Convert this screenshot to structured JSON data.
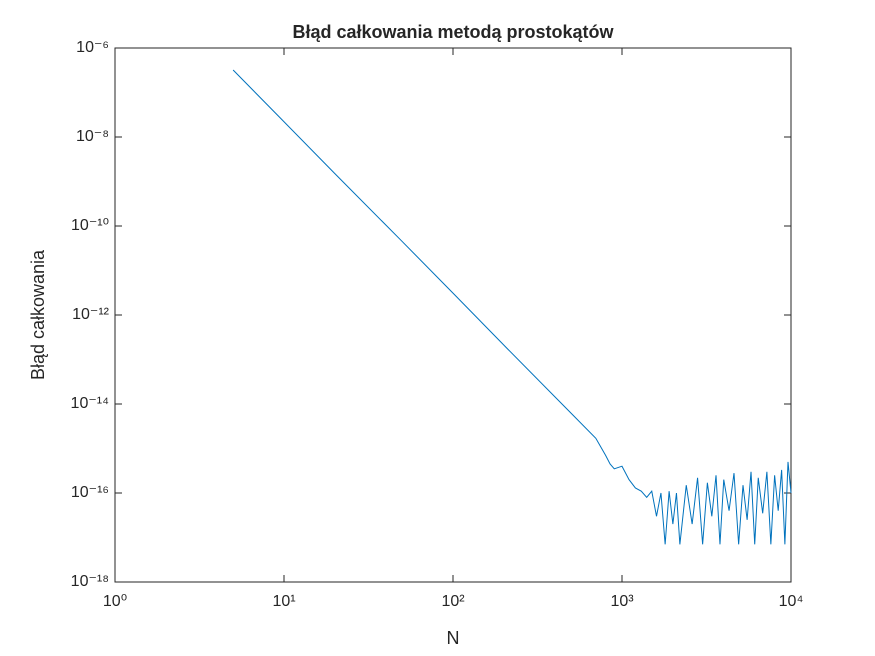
{
  "chart_data": {
    "type": "line",
    "title": "Błąd całkowania metodą prostokątów",
    "xlabel": "N",
    "ylabel": "Błąd całkowania",
    "xscale": "log",
    "yscale": "log",
    "xlim": [
      1,
      10000
    ],
    "ylim": [
      1e-18,
      1e-06
    ],
    "xticks": [
      {
        "value": 1,
        "label": "10⁰"
      },
      {
        "value": 10,
        "label": "10¹"
      },
      {
        "value": 100,
        "label": "10²"
      },
      {
        "value": 1000,
        "label": "10³"
      },
      {
        "value": 10000,
        "label": "10⁴"
      }
    ],
    "yticks": [
      {
        "value": 1e-18,
        "label": "10⁻¹⁸"
      },
      {
        "value": 1e-16,
        "label": "10⁻¹⁶"
      },
      {
        "value": 1e-14,
        "label": "10⁻¹⁴"
      },
      {
        "value": 1e-12,
        "label": "10⁻¹²"
      },
      {
        "value": 1e-10,
        "label": "10⁻¹⁰"
      },
      {
        "value": 1e-08,
        "label": "10⁻⁸"
      },
      {
        "value": 1e-06,
        "label": "10⁻⁶"
      }
    ],
    "color": "#0072bd",
    "x": [
      5,
      10,
      20,
      50,
      100,
      200,
      500,
      700,
      800,
      850,
      900,
      1000,
      1100,
      1200,
      1300,
      1400,
      1500,
      1600,
      1700,
      1800,
      1900,
      2000,
      2100,
      2200,
      2400,
      2600,
      2800,
      3000,
      3200,
      3400,
      3600,
      3800,
      4000,
      4300,
      4600,
      4900,
      5200,
      5500,
      5800,
      6100,
      6400,
      6800,
      7200,
      7600,
      8000,
      8400,
      8800,
      9200,
      9600,
      10000
    ],
    "values": [
      3.2e-07,
      2.2e-08,
      1.5e-09,
      4.5e-11,
      3.1e-12,
      2.1e-13,
      6.2e-15,
      1.7e-15,
      7e-16,
      4.5e-16,
      3.5e-16,
      4e-16,
      2e-16,
      1.3e-16,
      1.1e-16,
      8e-17,
      1.1e-16,
      3e-17,
      1e-16,
      7e-18,
      1.1e-16,
      2e-17,
      1e-16,
      7e-18,
      1.5e-16,
      2e-17,
      2.2e-16,
      7e-18,
      1.7e-16,
      3e-17,
      2.5e-16,
      7e-18,
      2e-16,
      4e-17,
      2.8e-16,
      7e-18,
      1.5e-16,
      2.5e-17,
      3e-16,
      7e-18,
      2.2e-16,
      3.5e-17,
      3e-16,
      7e-18,
      2.5e-16,
      4e-17,
      3.3e-16,
      7e-18,
      5e-16,
      1e-16
    ]
  }
}
